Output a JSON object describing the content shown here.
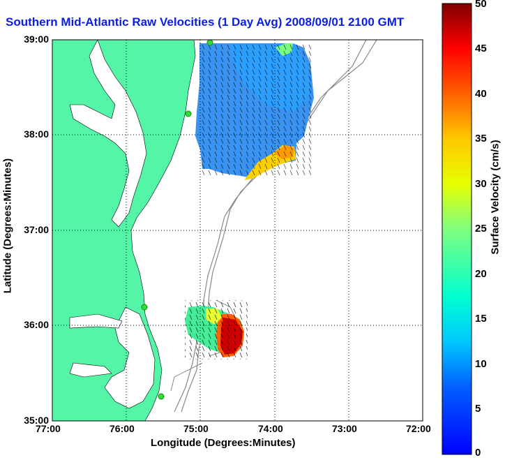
{
  "title": "Southern Mid-Atlantic Raw Velocities (1 Day Avg) 2008/09/01 2100 GMT",
  "axes": {
    "xlabel": "Longitude (Degrees:Minutes)",
    "ylabel": "Latitude (Degrees:Minutes)",
    "x_ticks": [
      "77:00",
      "76:00",
      "75:00",
      "74:00",
      "73:00",
      "72:00"
    ],
    "y_ticks": [
      "39:00",
      "38:00",
      "37:00",
      "36:00",
      "35:00"
    ]
  },
  "colorbar": {
    "label": "Surface Velocity (cm/s)",
    "ticks": [
      "50",
      "45",
      "40",
      "35",
      "30",
      "25",
      "20",
      "15",
      "10",
      "5",
      "0"
    ],
    "range": [
      0,
      50
    ]
  },
  "colors": {
    "land": "#55f5a8",
    "water": "#ffffff",
    "title": "#0a1ee6",
    "station": "#33dd33"
  }
}
